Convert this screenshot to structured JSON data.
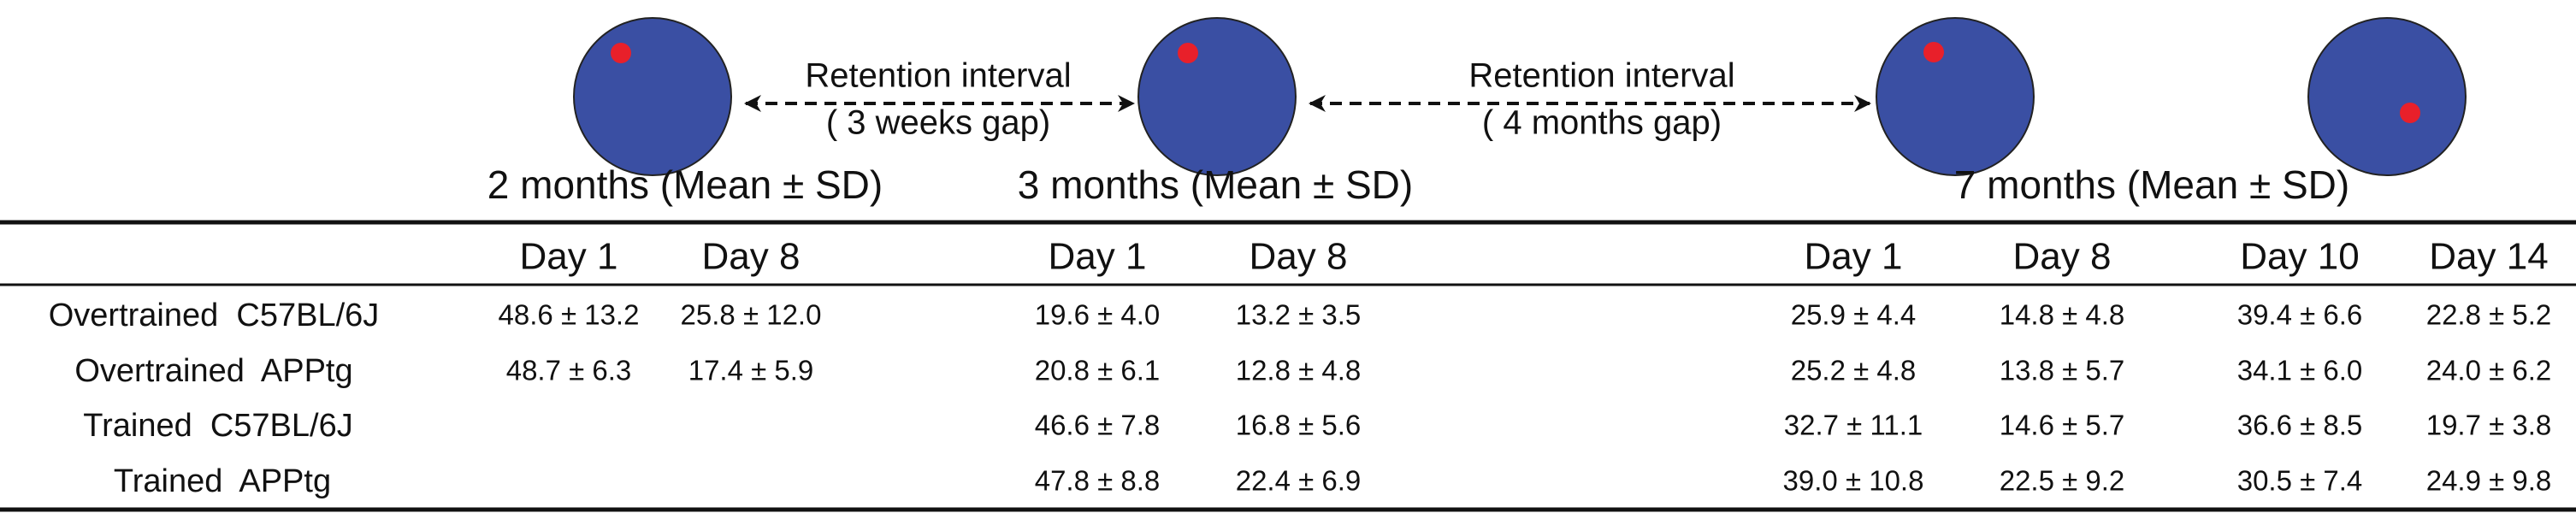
{
  "intervals": [
    {
      "label": "Retention interval",
      "gap": "( 3 weeks gap)"
    },
    {
      "label": "Retention interval",
      "gap": "( 4 months gap)"
    }
  ],
  "table": {
    "groups": [
      "2 months (Mean ± SD)",
      "3 months (Mean ± SD)",
      "7 months (Mean ± SD)"
    ],
    "columns": [
      "Day 1",
      "Day 8",
      "Day 1",
      "Day 8",
      "Day 1",
      "Day 8",
      "Day 10",
      "Day 14"
    ],
    "rows": [
      {
        "label": "Overtrained  C57BL/6J",
        "cells": [
          "48.6 ± 13.2",
          "25.8 ± 12.0",
          "19.6 ± 4.0",
          "13.2 ± 3.5",
          "25.9 ± 4.4",
          "14.8 ± 4.8",
          "39.4 ± 6.6",
          "22.8 ± 5.2"
        ]
      },
      {
        "label": "Overtrained  APPtg",
        "cells": [
          "48.7 ± 6.3",
          "17.4 ± 5.9",
          "20.8 ± 6.1",
          "12.8 ± 4.8",
          "25.2 ± 4.8",
          "13.8 ± 5.7",
          "34.1 ± 6.0",
          "24.0 ± 6.2"
        ]
      },
      {
        "label": "Trained  C57BL/6J",
        "cells": [
          null,
          null,
          "46.6 ± 7.8",
          "16.8 ± 5.6",
          "32.7 ± 11.1",
          "14.6 ± 5.7",
          "36.6 ± 8.5",
          "19.7 ± 3.8"
        ]
      },
      {
        "label": "Trained  APPtg",
        "cells": [
          null,
          null,
          "47.8 ± 8.8",
          "22.4 ± 6.9",
          "39.0 ± 10.8",
          "22.5 ± 9.2",
          "30.5 ± 7.4",
          "24.9 ± 9.8"
        ]
      }
    ]
  }
}
